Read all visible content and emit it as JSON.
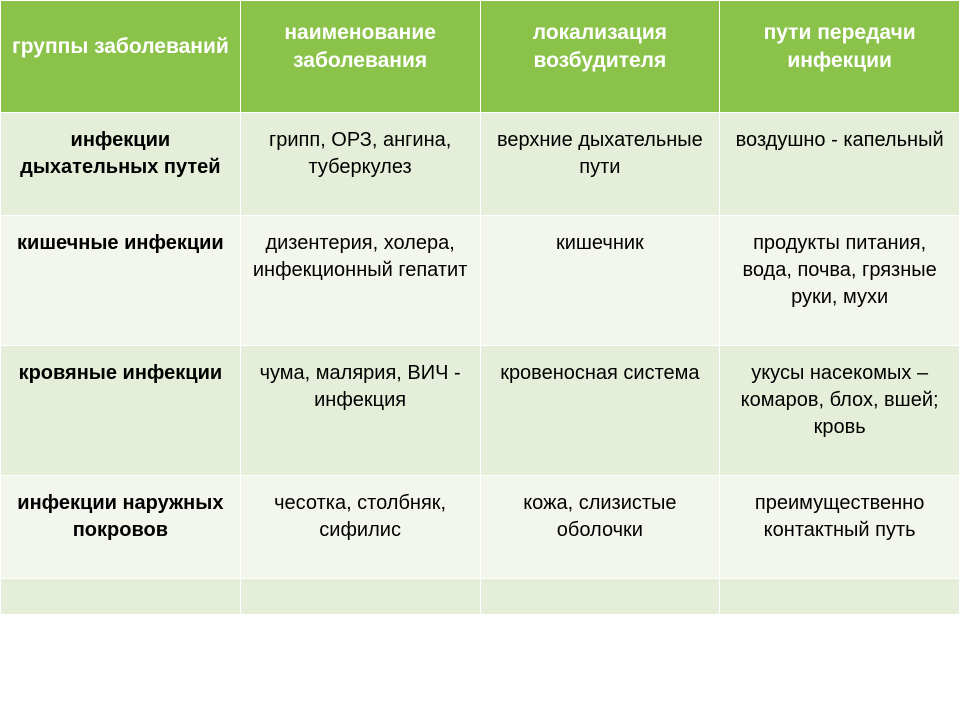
{
  "table": {
    "type": "table",
    "header_bg": "#8bc34a",
    "header_text_color": "#ffffff",
    "row_odd_bg": "#e5eed8",
    "row_even_bg": "#f2f6ec",
    "border_color": "#ffffff",
    "font_family": "Arial",
    "header_fontsize_pt": 16,
    "body_fontsize_pt": 15,
    "column_widths_pct": [
      25,
      25,
      25,
      25
    ],
    "columns": [
      "группы заболеваний",
      "наименование заболевания",
      "локализация возбудителя",
      "пути передачи инфекции"
    ],
    "rows": [
      {
        "group": "инфекции дыхательных путей",
        "name": "грипп, ОРЗ, ангина, туберкулез",
        "localization": "верхние дыхательные пути",
        "transmission": "воздушно - капельный"
      },
      {
        "group": "кишечные инфекции",
        "name": "дизентерия, холера, инфекционный гепатит",
        "localization": "кишечник",
        "transmission": "продукты питания, вода, почва, грязные руки, мухи"
      },
      {
        "group": "кровяные инфекции",
        "name": "чума, малярия, ВИЧ - инфекция",
        "localization": "кровеносная система",
        "transmission": "укусы насекомых – комаров, блох, вшей; кровь"
      },
      {
        "group": "инфекции наружных покровов",
        "name": "чесотка, столбняк, сифилис",
        "localization": "кожа, слизистые оболочки",
        "transmission": "преимущественно контактный путь"
      }
    ]
  }
}
